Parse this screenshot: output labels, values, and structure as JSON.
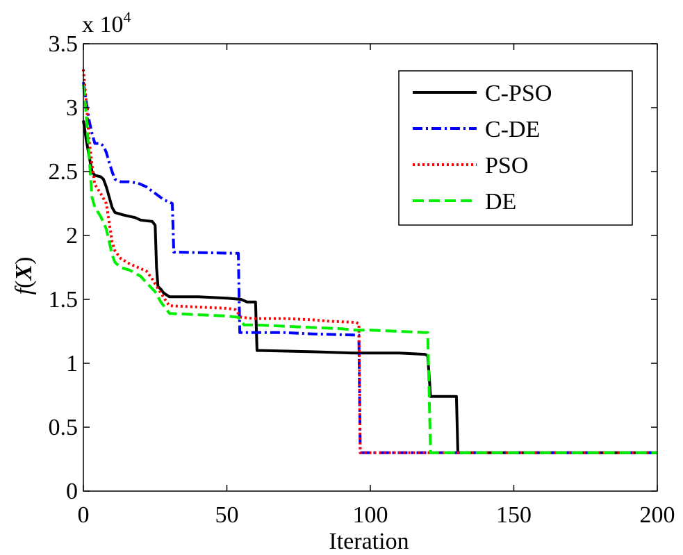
{
  "chart_data": {
    "type": "line",
    "title": "",
    "xlabel": "Iteration",
    "ylabel": "f(X)",
    "ylabel_func": "f",
    "ylabel_open": "(",
    "ylabel_var": "X",
    "ylabel_close": ")",
    "y_multiplier_text": "x 10",
    "y_multiplier_exp": "4",
    "xlim": [
      0,
      200
    ],
    "ylim": [
      0,
      3.5
    ],
    "xticks": [
      0,
      50,
      100,
      150,
      200
    ],
    "xtick_labels": [
      "0",
      "50",
      "100",
      "150",
      "200"
    ],
    "yticks": [
      0,
      0.5,
      1,
      1.5,
      2,
      2.5,
      3,
      3.5
    ],
    "ytick_labels": [
      "0",
      "0.5",
      "1",
      "1.5",
      "2",
      "2.5",
      "3",
      "3.5"
    ],
    "grid": false,
    "legend_position": "top-right",
    "series": [
      {
        "name": "C-PSO",
        "color": "#000000",
        "style": "solid",
        "points": [
          [
            0,
            2.9
          ],
          [
            1,
            2.75
          ],
          [
            2,
            2.62
          ],
          [
            3,
            2.5
          ],
          [
            4,
            2.47
          ],
          [
            6,
            2.46
          ],
          [
            7,
            2.44
          ],
          [
            8,
            2.38
          ],
          [
            9,
            2.3
          ],
          [
            10,
            2.22
          ],
          [
            11,
            2.18
          ],
          [
            14,
            2.16
          ],
          [
            18,
            2.14
          ],
          [
            20,
            2.12
          ],
          [
            24,
            2.11
          ],
          [
            25,
            2.08
          ],
          [
            25.5,
            1.75
          ],
          [
            26,
            1.6
          ],
          [
            27,
            1.58
          ],
          [
            28,
            1.55
          ],
          [
            30,
            1.52
          ],
          [
            40,
            1.52
          ],
          [
            50,
            1.51
          ],
          [
            55,
            1.5
          ],
          [
            57,
            1.48
          ],
          [
            60,
            1.48
          ],
          [
            60.5,
            1.1
          ],
          [
            62,
            1.1
          ],
          [
            80,
            1.09
          ],
          [
            95,
            1.08
          ],
          [
            110,
            1.08
          ],
          [
            119,
            1.07
          ],
          [
            120,
            1.06
          ],
          [
            121,
            0.74
          ],
          [
            130,
            0.74
          ],
          [
            130.5,
            0.3
          ],
          [
            200,
            0.3
          ]
        ]
      },
      {
        "name": "C-DE",
        "color": "#0000ff",
        "style": "dashdot",
        "points": [
          [
            0,
            3.2
          ],
          [
            1,
            3.05
          ],
          [
            2,
            2.9
          ],
          [
            3,
            2.8
          ],
          [
            4,
            2.72
          ],
          [
            6,
            2.72
          ],
          [
            7,
            2.7
          ],
          [
            8,
            2.65
          ],
          [
            9,
            2.57
          ],
          [
            10,
            2.5
          ],
          [
            11,
            2.44
          ],
          [
            13,
            2.42
          ],
          [
            16,
            2.42
          ],
          [
            19,
            2.41
          ],
          [
            22,
            2.38
          ],
          [
            25,
            2.33
          ],
          [
            28,
            2.28
          ],
          [
            31,
            2.25
          ],
          [
            31.5,
            1.87
          ],
          [
            54,
            1.86
          ],
          [
            54.5,
            1.24
          ],
          [
            55,
            1.24
          ],
          [
            70,
            1.24
          ],
          [
            80,
            1.23
          ],
          [
            96,
            1.22
          ],
          [
            96.5,
            0.3
          ],
          [
            200,
            0.3
          ]
        ]
      },
      {
        "name": "PSO",
        "color": "#ff0000",
        "style": "dotted",
        "points": [
          [
            0,
            3.3
          ],
          [
            1,
            3.05
          ],
          [
            2,
            2.75
          ],
          [
            3,
            2.55
          ],
          [
            4,
            2.4
          ],
          [
            6,
            2.33
          ],
          [
            8,
            2.25
          ],
          [
            9,
            2.1
          ],
          [
            10,
            1.95
          ],
          [
            11,
            1.88
          ],
          [
            13,
            1.82
          ],
          [
            16,
            1.78
          ],
          [
            20,
            1.74
          ],
          [
            22,
            1.72
          ],
          [
            24,
            1.66
          ],
          [
            25,
            1.62
          ],
          [
            27,
            1.55
          ],
          [
            29,
            1.48
          ],
          [
            30,
            1.45
          ],
          [
            40,
            1.44
          ],
          [
            50,
            1.43
          ],
          [
            53,
            1.42
          ],
          [
            55,
            1.36
          ],
          [
            60,
            1.35
          ],
          [
            70,
            1.35
          ],
          [
            80,
            1.34
          ],
          [
            85,
            1.33
          ],
          [
            95,
            1.32
          ],
          [
            96,
            1.31
          ],
          [
            96.5,
            0.3
          ],
          [
            200,
            0.3
          ]
        ]
      },
      {
        "name": "DE",
        "color": "#00ee00",
        "style": "dashed",
        "points": [
          [
            0,
            3.18
          ],
          [
            1,
            2.95
          ],
          [
            2,
            2.62
          ],
          [
            3,
            2.3
          ],
          [
            4,
            2.22
          ],
          [
            6,
            2.15
          ],
          [
            8,
            2.05
          ],
          [
            9,
            1.95
          ],
          [
            10,
            1.85
          ],
          [
            11,
            1.79
          ],
          [
            13,
            1.75
          ],
          [
            16,
            1.73
          ],
          [
            20,
            1.68
          ],
          [
            22,
            1.63
          ],
          [
            25,
            1.56
          ],
          [
            27,
            1.48
          ],
          [
            29,
            1.42
          ],
          [
            30,
            1.39
          ],
          [
            40,
            1.38
          ],
          [
            50,
            1.37
          ],
          [
            54,
            1.36
          ],
          [
            56,
            1.3
          ],
          [
            60,
            1.3
          ],
          [
            70,
            1.29
          ],
          [
            80,
            1.28
          ],
          [
            90,
            1.27
          ],
          [
            95,
            1.26
          ],
          [
            100,
            1.26
          ],
          [
            110,
            1.25
          ],
          [
            119,
            1.24
          ],
          [
            120,
            1.24
          ],
          [
            121,
            0.3
          ],
          [
            200,
            0.3
          ]
        ]
      }
    ]
  }
}
